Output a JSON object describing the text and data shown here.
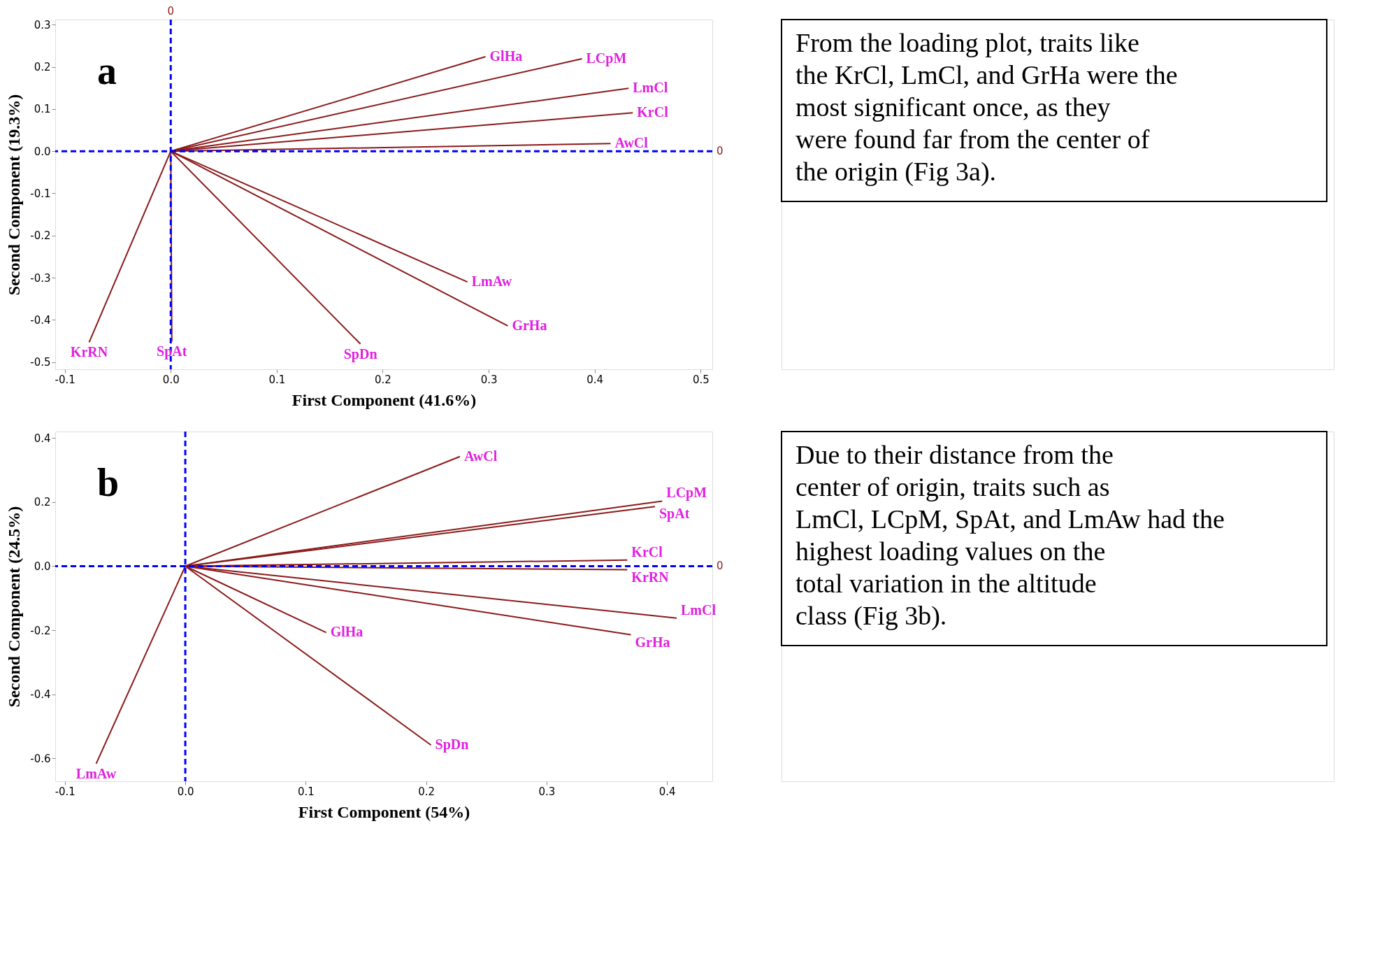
{
  "chart_data": [
    {
      "type": "line",
      "xlabel": "First Component (41.6%)",
      "ylabel": "Second Component (19.3%)",
      "annotations": [
        "a"
      ],
      "xlim": [
        -0.109,
        0.511
      ],
      "ylim": [
        -0.517,
        0.312
      ],
      "xticks": [
        -0.1,
        {
          "value": 0,
          "label": "0.0"
        },
        0.1,
        0.2,
        0.3,
        0.4,
        0.5
      ],
      "yticks": [
        -0.5,
        -0.4,
        -0.3,
        -0.2,
        -0.1,
        {
          "value": 0,
          "label": "0.0"
        },
        0.1,
        0.2,
        0.3
      ],
      "grid": false,
      "legend": false,
      "marker": "none",
      "line_style": "solid",
      "ref_lines": [
        {
          "axis": "x",
          "value": 0,
          "label": "0",
          "color": "#0000ff",
          "line_style": "dashed"
        },
        {
          "axis": "y",
          "value": 0,
          "label": "0",
          "color": "#0000ff",
          "line_style": "dashed"
        }
      ],
      "series": [
        {
          "name": "GlHa",
          "color": "#8b1a1a",
          "x": [
            0,
            0.297
          ],
          "values": [
            0,
            0.224
          ]
        },
        {
          "name": "LCpM",
          "color": "#8b1a1a",
          "x": [
            0,
            0.388
          ],
          "values": [
            0,
            0.219
          ]
        },
        {
          "name": "LmCl",
          "color": "#8b1a1a",
          "x": [
            0,
            0.432
          ],
          "values": [
            0,
            0.149
          ]
        },
        {
          "name": "KrCl",
          "color": "#8b1a1a",
          "x": [
            0,
            0.436
          ],
          "values": [
            0,
            0.091
          ]
        },
        {
          "name": "AwCl",
          "color": "#8b1a1a",
          "x": [
            0,
            0.415
          ],
          "values": [
            0,
            0.018
          ]
        },
        {
          "name": "LmAw",
          "color": "#8b1a1a",
          "x": [
            0,
            0.28
          ],
          "values": [
            0,
            -0.31
          ]
        },
        {
          "name": "GrHa",
          "color": "#8b1a1a",
          "x": [
            0,
            0.318
          ],
          "values": [
            0,
            -0.414
          ]
        },
        {
          "name": "SpDn",
          "color": "#8b1a1a",
          "x": [
            0,
            0.179
          ],
          "values": [
            0,
            -0.457
          ]
        },
        {
          "name": "SpAt",
          "color": "#8b1a1a",
          "x": [
            0,
            0.001
          ],
          "values": [
            0,
            -0.451
          ]
        },
        {
          "name": "KrRN",
          "color": "#8b1a1a",
          "x": [
            0,
            -0.077
          ],
          "values": [
            0,
            -0.453
          ]
        }
      ]
    },
    {
      "type": "other",
      "annotations": [
        "From the loading plot, traits like the KrCl, LmCl, and GrHa were the most significant once, as they were found far from the center of the origin (Fig 3a)."
      ]
    },
    {
      "type": "line",
      "xlabel": "First Component (54%)",
      "ylabel": "Second Component (24.5%)",
      "annotations": [
        "b"
      ],
      "xlim": [
        -0.108,
        0.4376
      ],
      "ylim": [
        -0.671,
        0.42
      ],
      "xticks": [
        -0.1,
        {
          "value": 0,
          "label": "0.0"
        },
        0.1,
        0.2,
        0.3,
        0.4
      ],
      "yticks": [
        -0.6,
        -0.4,
        -0.2,
        {
          "value": 0,
          "label": "0.0"
        },
        0.2,
        0.4
      ],
      "grid": false,
      "legend": false,
      "marker": "none",
      "line_style": "solid",
      "ref_lines": [
        {
          "axis": "x",
          "value": 0,
          "label": null,
          "color": "#0000ff",
          "line_style": "dashed"
        },
        {
          "axis": "y",
          "value": 0,
          "label": "0",
          "color": "#0000ff",
          "line_style": "dashed"
        }
      ],
      "series": [
        {
          "name": "AwCl",
          "color": "#8b1a1a",
          "x": [
            0,
            0.228
          ],
          "values": [
            0,
            0.342
          ]
        },
        {
          "name": "LCpM",
          "color": "#8b1a1a",
          "x": [
            0,
            0.396
          ],
          "values": [
            0,
            0.203
          ]
        },
        {
          "name": "SpAt",
          "color": "#8b1a1a",
          "x": [
            0,
            0.39
          ],
          "values": [
            0,
            0.186
          ]
        },
        {
          "name": "KrCl",
          "color": "#8b1a1a",
          "x": [
            0,
            0.367
          ],
          "values": [
            0,
            0.019
          ]
        },
        {
          "name": "KrRN",
          "color": "#8b1a1a",
          "x": [
            0,
            0.367
          ],
          "values": [
            0,
            -0.011
          ]
        },
        {
          "name": "LmCl",
          "color": "#8b1a1a",
          "x": [
            0,
            0.408
          ],
          "values": [
            0,
            -0.162
          ]
        },
        {
          "name": "GrHa",
          "color": "#8b1a1a",
          "x": [
            0,
            0.37
          ],
          "values": [
            0,
            -0.214
          ]
        },
        {
          "name": "GlHa",
          "color": "#8b1a1a",
          "x": [
            0,
            0.117
          ],
          "values": [
            0,
            -0.207
          ]
        },
        {
          "name": "SpDn",
          "color": "#8b1a1a",
          "x": [
            0,
            0.204
          ],
          "values": [
            0,
            -0.558
          ]
        },
        {
          "name": "LmAw",
          "color": "#8b1a1a",
          "x": [
            0,
            -0.074
          ],
          "values": [
            0,
            -0.616
          ]
        }
      ]
    },
    {
      "type": "other",
      "annotations": [
        "Due to their distance from the center of origin, traits such as LmCl, LCpM, SpAt, and LmAw had the highest loading values on the total variation in the altitude class (Fig 3b)."
      ]
    }
  ]
}
